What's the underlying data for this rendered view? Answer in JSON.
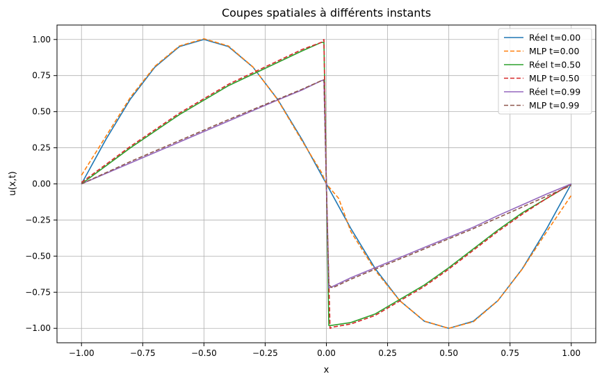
{
  "colors": {
    "reel_t0": "#1f77b4",
    "mlp_t0": "#ff7f0e",
    "reel_t050": "#2ca02c",
    "mlp_t050": "#d62728",
    "reel_t099": "#9467bd",
    "mlp_t099": "#8c564b",
    "grid": "#b0b0b0"
  },
  "chart_data": {
    "type": "line",
    "title": "Coupes spatiales à différents instants",
    "xlabel": "x",
    "ylabel": "u(x,t)",
    "xlim": [
      -1.1,
      1.1
    ],
    "ylim": [
      -1.1,
      1.1
    ],
    "xticks": [
      -1.0,
      -0.75,
      -0.5,
      -0.25,
      0.0,
      0.25,
      0.5,
      0.75,
      1.0
    ],
    "xtick_labels": [
      "−1.00",
      "−0.75",
      "−0.50",
      "−0.25",
      "0.00",
      "0.25",
      "0.50",
      "0.75",
      "1.00"
    ],
    "yticks": [
      1.0,
      0.75,
      0.5,
      0.25,
      0.0,
      -0.25,
      -0.5,
      -0.75,
      -1.0
    ],
    "ytick_labels": [
      "1.00",
      "0.75",
      "0.50",
      "0.25",
      "0.00",
      "−0.25",
      "−0.50",
      "−0.75",
      "−1.00"
    ],
    "grid": true,
    "legend_position": "top-right",
    "series": [
      {
        "name": "Réel t=0.00",
        "style": "solid",
        "color": "#1f77b4",
        "points": [
          [
            -1.0,
            0.0
          ],
          [
            -0.9,
            0.309
          ],
          [
            -0.8,
            0.588
          ],
          [
            -0.7,
            0.809
          ],
          [
            -0.6,
            0.951
          ],
          [
            -0.5,
            1.0
          ],
          [
            -0.4,
            0.951
          ],
          [
            -0.3,
            0.809
          ],
          [
            -0.2,
            0.588
          ],
          [
            -0.1,
            0.309
          ],
          [
            0.0,
            0.0
          ],
          [
            0.1,
            -0.309
          ],
          [
            0.2,
            -0.588
          ],
          [
            0.3,
            -0.809
          ],
          [
            0.4,
            -0.951
          ],
          [
            0.5,
            -1.0
          ],
          [
            0.6,
            -0.951
          ],
          [
            0.7,
            -0.809
          ],
          [
            0.8,
            -0.588
          ],
          [
            0.9,
            -0.309
          ],
          [
            1.0,
            0.0
          ]
        ]
      },
      {
        "name": "MLP t=0.00",
        "style": "dashed",
        "color": "#ff7f0e",
        "points": [
          [
            -1.0,
            0.06
          ],
          [
            -0.9,
            0.33
          ],
          [
            -0.8,
            0.6
          ],
          [
            -0.7,
            0.815
          ],
          [
            -0.6,
            0.955
          ],
          [
            -0.5,
            1.005
          ],
          [
            -0.4,
            0.955
          ],
          [
            -0.3,
            0.81
          ],
          [
            -0.2,
            0.585
          ],
          [
            -0.1,
            0.3
          ],
          [
            -0.02,
            0.08
          ],
          [
            0.0,
            0.0
          ],
          [
            0.05,
            -0.1
          ],
          [
            0.1,
            -0.33
          ],
          [
            0.2,
            -0.6
          ],
          [
            0.3,
            -0.81
          ],
          [
            0.4,
            -0.95
          ],
          [
            0.5,
            -1.0
          ],
          [
            0.6,
            -0.955
          ],
          [
            0.7,
            -0.81
          ],
          [
            0.8,
            -0.59
          ],
          [
            0.9,
            -0.33
          ],
          [
            1.0,
            -0.08
          ]
        ]
      },
      {
        "name": "Réel t=0.50",
        "style": "solid",
        "color": "#2ca02c",
        "points": [
          [
            -1.0,
            0.0
          ],
          [
            -0.8,
            0.25
          ],
          [
            -0.6,
            0.48
          ],
          [
            -0.4,
            0.68
          ],
          [
            -0.2,
            0.84
          ],
          [
            -0.1,
            0.92
          ],
          [
            -0.02,
            0.98
          ],
          [
            -0.01,
            0.98
          ],
          [
            0.0,
            0.0
          ],
          [
            0.01,
            -0.98
          ],
          [
            0.02,
            -0.98
          ],
          [
            0.1,
            -0.96
          ],
          [
            0.2,
            -0.9
          ],
          [
            0.3,
            -0.8
          ],
          [
            0.4,
            -0.7
          ],
          [
            0.5,
            -0.58
          ],
          [
            0.6,
            -0.45
          ],
          [
            0.7,
            -0.32
          ],
          [
            0.8,
            -0.2
          ],
          [
            0.9,
            -0.1
          ],
          [
            1.0,
            0.0
          ]
        ]
      },
      {
        "name": "MLP t=0.50",
        "style": "dashed",
        "color": "#d62728",
        "points": [
          [
            -1.0,
            0.01
          ],
          [
            -0.8,
            0.26
          ],
          [
            -0.6,
            0.49
          ],
          [
            -0.4,
            0.69
          ],
          [
            -0.2,
            0.85
          ],
          [
            -0.1,
            0.93
          ],
          [
            -0.02,
            0.98
          ],
          [
            -0.01,
            1.0
          ],
          [
            0.0,
            0.0
          ],
          [
            0.015,
            -1.0
          ],
          [
            0.03,
            -0.99
          ],
          [
            0.1,
            -0.97
          ],
          [
            0.2,
            -0.91
          ],
          [
            0.3,
            -0.81
          ],
          [
            0.4,
            -0.71
          ],
          [
            0.5,
            -0.59
          ],
          [
            0.6,
            -0.46
          ],
          [
            0.7,
            -0.33
          ],
          [
            0.8,
            -0.21
          ],
          [
            0.9,
            -0.1
          ],
          [
            1.0,
            0.0
          ]
        ]
      },
      {
        "name": "Réel t=0.99",
        "style": "solid",
        "color": "#9467bd",
        "points": [
          [
            -1.0,
            0.0
          ],
          [
            -0.8,
            0.145
          ],
          [
            -0.6,
            0.29
          ],
          [
            -0.4,
            0.435
          ],
          [
            -0.2,
            0.58
          ],
          [
            -0.1,
            0.65
          ],
          [
            -0.02,
            0.715
          ],
          [
            -0.01,
            0.72
          ],
          [
            0.0,
            0.0
          ],
          [
            0.01,
            -0.72
          ],
          [
            0.02,
            -0.715
          ],
          [
            0.1,
            -0.65
          ],
          [
            0.2,
            -0.58
          ],
          [
            0.3,
            -0.51
          ],
          [
            0.4,
            -0.44
          ],
          [
            0.5,
            -0.37
          ],
          [
            0.6,
            -0.3
          ],
          [
            0.7,
            -0.22
          ],
          [
            0.8,
            -0.145
          ],
          [
            0.9,
            -0.07
          ],
          [
            1.0,
            0.0
          ]
        ]
      },
      {
        "name": "MLP t=0.99",
        "style": "dashed",
        "color": "#8c564b",
        "points": [
          [
            -1.0,
            0.0
          ],
          [
            -0.8,
            0.155
          ],
          [
            -0.6,
            0.3
          ],
          [
            -0.4,
            0.445
          ],
          [
            -0.2,
            0.585
          ],
          [
            -0.1,
            0.655
          ],
          [
            -0.02,
            0.715
          ],
          [
            -0.01,
            0.72
          ],
          [
            0.0,
            0.0
          ],
          [
            0.01,
            -0.7
          ],
          [
            0.025,
            -0.72
          ],
          [
            0.1,
            -0.66
          ],
          [
            0.2,
            -0.59
          ],
          [
            0.3,
            -0.52
          ],
          [
            0.4,
            -0.45
          ],
          [
            0.5,
            -0.38
          ],
          [
            0.6,
            -0.31
          ],
          [
            0.7,
            -0.235
          ],
          [
            0.8,
            -0.16
          ],
          [
            0.9,
            -0.085
          ],
          [
            1.0,
            -0.01
          ]
        ]
      }
    ]
  }
}
